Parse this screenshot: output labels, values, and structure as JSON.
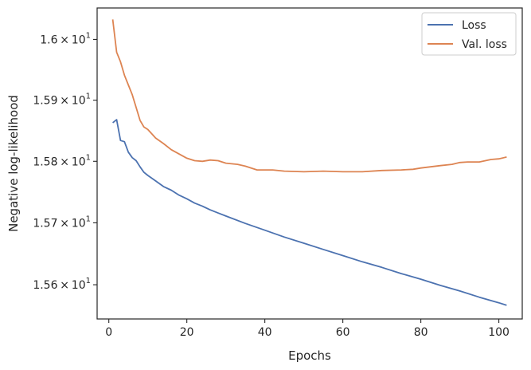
{
  "chart_data": {
    "type": "line",
    "xlabel": "Epochs",
    "ylabel": "Negative log-likelihood",
    "xlim": [
      -3,
      106
    ],
    "ylim": [
      15.545,
      16.052
    ],
    "yscale": "log",
    "grid": false,
    "legend_position": "top-right",
    "x_ticks": [
      0,
      20,
      40,
      60,
      80,
      100
    ],
    "x_tick_labels": [
      "0",
      "20",
      "40",
      "60",
      "80",
      "100"
    ],
    "y_ticks": [
      15.6,
      15.7,
      15.8,
      15.9,
      16.0
    ],
    "y_tick_labels": [
      {
        "mant": "1.56",
        "exp": "1"
      },
      {
        "mant": "1.57",
        "exp": "1"
      },
      {
        "mant": "1.58",
        "exp": "1"
      },
      {
        "mant": "1.59",
        "exp": "1"
      },
      {
        "mant": "1.6",
        "exp": "1"
      }
    ],
    "series": [
      {
        "name": "Loss",
        "color": "#4c72b0",
        "points": [
          [
            1,
            15.863
          ],
          [
            2,
            15.868
          ],
          [
            3,
            15.834
          ],
          [
            4,
            15.832
          ],
          [
            5,
            15.815
          ],
          [
            6,
            15.806
          ],
          [
            7,
            15.801
          ],
          [
            8,
            15.791
          ],
          [
            9,
            15.782
          ],
          [
            10,
            15.777
          ],
          [
            12,
            15.768
          ],
          [
            14,
            15.759
          ],
          [
            16,
            15.753
          ],
          [
            18,
            15.745
          ],
          [
            20,
            15.739
          ],
          [
            22,
            15.732
          ],
          [
            24,
            15.727
          ],
          [
            26,
            15.721
          ],
          [
            28,
            15.716
          ],
          [
            30,
            15.711
          ],
          [
            35,
            15.699
          ],
          [
            40,
            15.688
          ],
          [
            45,
            15.677
          ],
          [
            50,
            15.667
          ],
          [
            55,
            15.657
          ],
          [
            60,
            15.647
          ],
          [
            65,
            15.637
          ],
          [
            70,
            15.628
          ],
          [
            75,
            15.618
          ],
          [
            80,
            15.609
          ],
          [
            85,
            15.599
          ],
          [
            90,
            15.59
          ],
          [
            95,
            15.58
          ],
          [
            100,
            15.571
          ],
          [
            102,
            15.567
          ]
        ]
      },
      {
        "name": "Val. loss",
        "color": "#dd8452",
        "points": [
          [
            1,
            16.033
          ],
          [
            2,
            15.979
          ],
          [
            3,
            15.963
          ],
          [
            4,
            15.941
          ],
          [
            5,
            15.925
          ],
          [
            6,
            15.909
          ],
          [
            7,
            15.888
          ],
          [
            8,
            15.867
          ],
          [
            9,
            15.856
          ],
          [
            10,
            15.852
          ],
          [
            12,
            15.838
          ],
          [
            14,
            15.829
          ],
          [
            16,
            15.819
          ],
          [
            18,
            15.812
          ],
          [
            20,
            15.805
          ],
          [
            22,
            15.801
          ],
          [
            24,
            15.8
          ],
          [
            26,
            15.802
          ],
          [
            28,
            15.801
          ],
          [
            30,
            15.797
          ],
          [
            33,
            15.795
          ],
          [
            35,
            15.792
          ],
          [
            38,
            15.786
          ],
          [
            40,
            15.786
          ],
          [
            42,
            15.786
          ],
          [
            45,
            15.784
          ],
          [
            50,
            15.783
          ],
          [
            55,
            15.784
          ],
          [
            60,
            15.783
          ],
          [
            65,
            15.783
          ],
          [
            70,
            15.785
          ],
          [
            75,
            15.786
          ],
          [
            78,
            15.787
          ],
          [
            80,
            15.789
          ],
          [
            85,
            15.793
          ],
          [
            88,
            15.795
          ],
          [
            90,
            15.798
          ],
          [
            92,
            15.799
          ],
          [
            95,
            15.799
          ],
          [
            98,
            15.803
          ],
          [
            100,
            15.804
          ],
          [
            102,
            15.807
          ]
        ]
      }
    ]
  }
}
